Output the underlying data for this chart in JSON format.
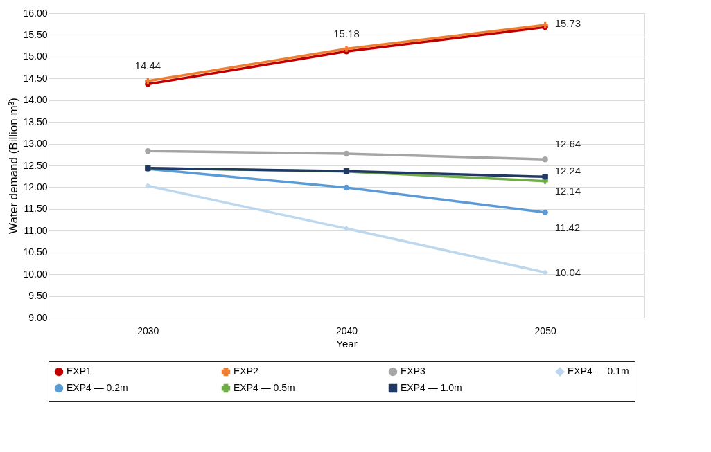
{
  "chart_data": {
    "type": "line",
    "xlabel": "Year",
    "ylabel": "Water demand (Billion m³)",
    "categories": [
      "2030",
      "2040",
      "2050"
    ],
    "series": [
      {
        "name": "EXP1",
        "color": "#c00000",
        "marker": "circle",
        "values": [
          14.37,
          15.12,
          15.68
        ]
      },
      {
        "name": "EXP2",
        "color": "#ed7d31",
        "marker": "cross",
        "values": [
          14.44,
          15.18,
          15.73
        ],
        "value_labels": [
          "14.44",
          "15.18",
          "15.73"
        ]
      },
      {
        "name": "EXP3",
        "color": "#a5a5a5",
        "marker": "circle",
        "values": [
          12.83,
          12.77,
          12.64
        ],
        "value_labels": [
          null,
          null,
          "12.64"
        ]
      },
      {
        "name": "EXP4 — 0.1m",
        "color": "#bdd7ee",
        "marker": "diamond",
        "values": [
          12.03,
          11.05,
          10.04
        ],
        "value_labels": [
          null,
          null,
          "10.04"
        ]
      },
      {
        "name": "EXP4 — 0.2m",
        "color": "#5b9bd5",
        "marker": "circle",
        "values": [
          12.42,
          11.99,
          11.42
        ],
        "value_labels": [
          null,
          null,
          "11.42"
        ]
      },
      {
        "name": "EXP4 — 0.5m",
        "color": "#70ad47",
        "marker": "cross",
        "values": [
          12.44,
          12.36,
          12.14
        ],
        "value_labels": [
          null,
          null,
          "12.14"
        ]
      },
      {
        "name": "EXP4 — 1.0m",
        "color": "#203864",
        "marker": "square",
        "values": [
          12.44,
          12.37,
          12.24
        ],
        "value_labels": [
          null,
          null,
          "12.24"
        ]
      }
    ],
    "ylim": [
      9,
      16
    ],
    "yticks": [
      {
        "value": 9,
        "label": "9.00"
      },
      {
        "value": 9.5,
        "label": "9.50"
      },
      {
        "value": 10,
        "label": "10.00"
      },
      {
        "value": 10.5,
        "label": "10.50"
      },
      {
        "value": 11,
        "label": "11.00"
      },
      {
        "value": 11.5,
        "label": "11.50"
      },
      {
        "value": 12,
        "label": "12.00"
      },
      {
        "value": 12.5,
        "label": "12.50"
      },
      {
        "value": 13,
        "label": "13.00"
      },
      {
        "value": 13.5,
        "label": "13.50"
      },
      {
        "value": 14,
        "label": "14.00"
      },
      {
        "value": 14.5,
        "label": "14.50"
      },
      {
        "value": 15,
        "label": "15.00"
      },
      {
        "value": 15.5,
        "label": "15.50"
      },
      {
        "value": 16,
        "label": "16.00"
      }
    ],
    "grid": "y",
    "legend": "bottom",
    "line_style": "solid"
  }
}
